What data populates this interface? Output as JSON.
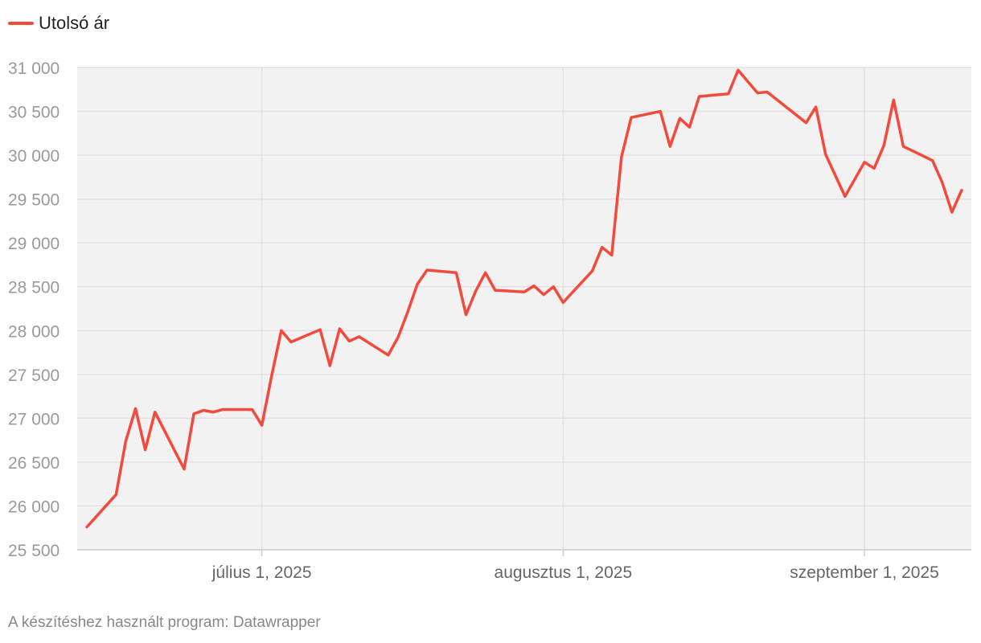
{
  "legend": {
    "label": "Utolsó ár",
    "color": "#f44a3d"
  },
  "footer": {
    "text": "A készítéshez használt program: Datawrapper"
  },
  "colors": {
    "plot_bg": "#f2f2f2",
    "grid": "#e1e1e1",
    "line": "#f44a3d"
  },
  "chart_data": {
    "type": "line",
    "x_type": "date",
    "xlim": [
      "2025-06-12",
      "2025-09-12"
    ],
    "ylim": [
      25500,
      31000
    ],
    "yticks": [
      25500,
      26000,
      26500,
      27000,
      27500,
      28000,
      28500,
      29000,
      29500,
      30000,
      30500,
      31000
    ],
    "ytick_labels": [
      "25 500",
      "26 000",
      "26 500",
      "27 000",
      "27 500",
      "28 000",
      "28 500",
      "29 000",
      "29 500",
      "30 000",
      "30 500",
      "31 000"
    ],
    "xticks": [
      "2025-07-01",
      "2025-08-01",
      "2025-09-01"
    ],
    "xtick_labels": [
      "július 1, 2025",
      "augusztus 1, 2025",
      "szeptember 1, 2025"
    ],
    "grid": true,
    "legend_position": "top-left",
    "series": [
      {
        "name": "Utolsó ár",
        "points": [
          [
            "2025-06-13",
            25760
          ],
          [
            "2025-06-16",
            26130
          ],
          [
            "2025-06-17",
            26740
          ],
          [
            "2025-06-18",
            27110
          ],
          [
            "2025-06-19",
            26640
          ],
          [
            "2025-06-20",
            27070
          ],
          [
            "2025-06-23",
            26420
          ],
          [
            "2025-06-24",
            27050
          ],
          [
            "2025-06-25",
            27090
          ],
          [
            "2025-06-26",
            27070
          ],
          [
            "2025-06-27",
            27100
          ],
          [
            "2025-06-30",
            27100
          ],
          [
            "2025-07-01",
            26920
          ],
          [
            "2025-07-02",
            27480
          ],
          [
            "2025-07-03",
            28000
          ],
          [
            "2025-07-04",
            27870
          ],
          [
            "2025-07-07",
            28010
          ],
          [
            "2025-07-08",
            27600
          ],
          [
            "2025-07-09",
            28020
          ],
          [
            "2025-07-10",
            27880
          ],
          [
            "2025-07-11",
            27930
          ],
          [
            "2025-07-14",
            27720
          ],
          [
            "2025-07-15",
            27920
          ],
          [
            "2025-07-16",
            28210
          ],
          [
            "2025-07-17",
            28530
          ],
          [
            "2025-07-18",
            28690
          ],
          [
            "2025-07-21",
            28660
          ],
          [
            "2025-07-22",
            28180
          ],
          [
            "2025-07-23",
            28450
          ],
          [
            "2025-07-24",
            28660
          ],
          [
            "2025-07-25",
            28460
          ],
          [
            "2025-07-28",
            28440
          ],
          [
            "2025-07-29",
            28510
          ],
          [
            "2025-07-30",
            28410
          ],
          [
            "2025-07-31",
            28500
          ],
          [
            "2025-08-01",
            28320
          ],
          [
            "2025-08-04",
            28680
          ],
          [
            "2025-08-05",
            28950
          ],
          [
            "2025-08-06",
            28860
          ],
          [
            "2025-08-07",
            29980
          ],
          [
            "2025-08-08",
            30430
          ],
          [
            "2025-08-11",
            30500
          ],
          [
            "2025-08-12",
            30100
          ],
          [
            "2025-08-13",
            30420
          ],
          [
            "2025-08-14",
            30320
          ],
          [
            "2025-08-15",
            30670
          ],
          [
            "2025-08-18",
            30700
          ],
          [
            "2025-08-19",
            30970
          ],
          [
            "2025-08-21",
            30710
          ],
          [
            "2025-08-22",
            30720
          ],
          [
            "2025-08-26",
            30370
          ],
          [
            "2025-08-27",
            30550
          ],
          [
            "2025-08-28",
            30010
          ],
          [
            "2025-08-30",
            29530
          ],
          [
            "2025-09-01",
            29920
          ],
          [
            "2025-09-02",
            29850
          ],
          [
            "2025-09-03",
            30110
          ],
          [
            "2025-09-04",
            30630
          ],
          [
            "2025-09-05",
            30100
          ],
          [
            "2025-09-08",
            29940
          ],
          [
            "2025-09-09",
            29690
          ],
          [
            "2025-09-10",
            29350
          ],
          [
            "2025-09-11",
            29600
          ]
        ]
      }
    ]
  }
}
